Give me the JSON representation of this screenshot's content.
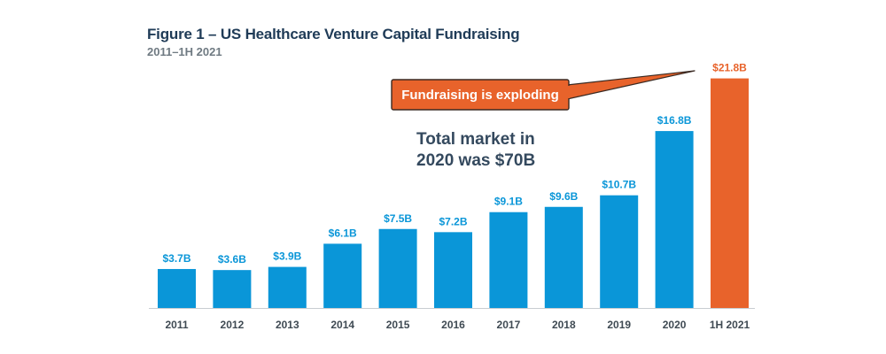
{
  "header": {
    "title": "Figure 1 – US Healthcare Venture Capital Fundraising",
    "subtitle": "2011–1H 2021"
  },
  "annotation": {
    "note_line1": "Total market in",
    "note_line2": "2020 was $70B",
    "callout": "Fundraising is exploding"
  },
  "colors": {
    "bar": "#0a96d8",
    "highlight": "#e8632b",
    "callout_border": "#3a2a22",
    "title": "#1f3b57"
  },
  "chart_data": {
    "type": "bar",
    "title": "Figure 1 – US Healthcare Venture Capital Fundraising",
    "subtitle": "2011–1H 2021",
    "categories": [
      "2011",
      "2012",
      "2013",
      "2014",
      "2015",
      "2016",
      "2017",
      "2018",
      "2019",
      "2020",
      "1H 2021"
    ],
    "values": [
      3.7,
      3.6,
      3.9,
      6.1,
      7.5,
      7.2,
      9.1,
      9.6,
      10.7,
      16.8,
      21.8
    ],
    "labels": [
      "$3.7B",
      "$3.6B",
      "$3.9B",
      "$6.1B",
      "$7.5B",
      "$7.2B",
      "$9.1B",
      "$9.6B",
      "$10.7B",
      "$16.8B",
      "$21.8B"
    ],
    "highlight_category": "1H 2021",
    "xlabel": "",
    "ylabel": "",
    "grid": false,
    "legend": "none"
  }
}
